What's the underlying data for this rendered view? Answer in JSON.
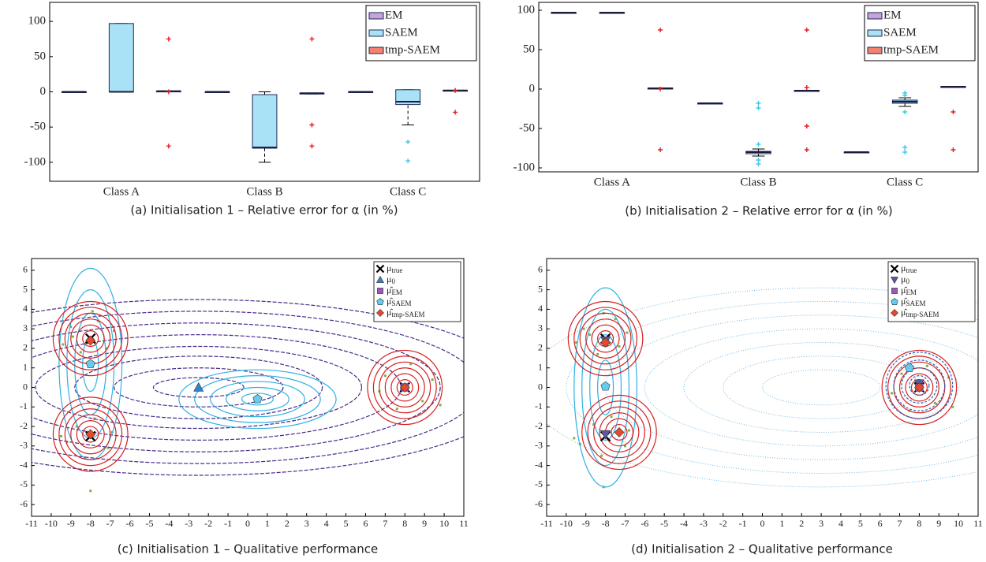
{
  "chart_data": [
    {
      "type": "box",
      "caption": "(a)  Initialisation 1 – Relative error for α (in %)",
      "categories": [
        "Class A",
        "Class B",
        "Class C"
      ],
      "ylim": [
        -127,
        127
      ],
      "yticks": [
        -100,
        -50,
        0,
        50,
        100
      ],
      "series": [
        {
          "name": "EM",
          "color": "#c8a2d8",
          "outlier_color": "#e02020",
          "boxes": [
            {
              "min": 0,
              "q1": 0,
              "median": 0,
              "q3": 0,
              "max": 0,
              "outliers": []
            },
            {
              "min": 0,
              "q1": 0,
              "median": 0,
              "q3": 0,
              "max": 0,
              "outliers": []
            },
            {
              "min": 0,
              "q1": 0,
              "median": 0,
              "q3": 0,
              "max": 0,
              "outliers": []
            }
          ]
        },
        {
          "name": "SAEM",
          "color": "#a9e1f6",
          "outlier_color": "#3cc8e8",
          "boxes": [
            {
              "min": 0,
              "q1": 0,
              "median": 0,
              "q3": 97,
              "max": 97,
              "outliers": []
            },
            {
              "min": -100,
              "q1": -80,
              "median": -79,
              "q3": -4,
              "max": 0,
              "outliers": []
            },
            {
              "min": -47,
              "q1": -18,
              "median": -14,
              "q3": 3,
              "max": 3,
              "outliers": [
                -71,
                -98
              ]
            }
          ]
        },
        {
          "name": "tmp-SAEM",
          "color": "#f4836d",
          "outlier_color": "#e02020",
          "boxes": [
            {
              "min": 0,
              "q1": 0,
              "median": 1,
              "q3": 1,
              "max": 1,
              "outliers": [
                75,
                0,
                -77
              ]
            },
            {
              "min": -3,
              "q1": -3,
              "median": -2,
              "q3": -2,
              "max": -2,
              "outliers": [
                75,
                -47,
                -77
              ]
            },
            {
              "min": 2,
              "q1": 2,
              "median": 2,
              "q3": 2,
              "max": 2,
              "outliers": [
                2,
                -29
              ]
            }
          ]
        }
      ]
    },
    {
      "type": "box",
      "caption": "(b)  Initialisation 2 – Relative error for α (in %)",
      "categories": [
        "Class A",
        "Class B",
        "Class C"
      ],
      "ylim": [
        -105,
        110
      ],
      "yticks": [
        -100,
        -50,
        0,
        50,
        100
      ],
      "series": [
        {
          "name": "EM",
          "color": "#c8a2d8",
          "outlier_color": "#e02020",
          "boxes": [
            {
              "min": 97,
              "q1": 97,
              "median": 97,
              "q3": 97,
              "max": 97,
              "outliers": []
            },
            {
              "min": -18,
              "q1": -18,
              "median": -18,
              "q3": -18,
              "max": -18,
              "outliers": []
            },
            {
              "min": -80,
              "q1": -80,
              "median": -80,
              "q3": -80,
              "max": -80,
              "outliers": []
            }
          ]
        },
        {
          "name": "SAEM",
          "color": "#a9e1f6",
          "outlier_color": "#3cc8e8",
          "boxes": [
            {
              "min": 97,
              "q1": 97,
              "median": 97,
              "q3": 97,
              "max": 97,
              "outliers": []
            },
            {
              "min": -85,
              "q1": -82,
              "median": -80,
              "q3": -79,
              "max": -76,
              "outliers": [
                -18,
                -24,
                -70,
                -90,
                -95
              ]
            },
            {
              "min": -22,
              "q1": -18,
              "median": -16,
              "q3": -14,
              "max": -11,
              "outliers": [
                -5,
                -8,
                -29,
                -74,
                -80
              ]
            }
          ]
        },
        {
          "name": "tmp-SAEM",
          "color": "#f4836d",
          "outlier_color": "#e02020",
          "boxes": [
            {
              "min": 1,
              "q1": 1,
              "median": 1,
              "q3": 1,
              "max": 1,
              "outliers": [
                75,
                0,
                -77
              ]
            },
            {
              "min": -2,
              "q1": -2,
              "median": -2,
              "q3": -2,
              "max": -2,
              "outliers": [
                75,
                2,
                -47,
                -77
              ]
            },
            {
              "min": 3,
              "q1": 3,
              "median": 3,
              "q3": 3,
              "max": 3,
              "outliers": [
                -29,
                -77
              ]
            }
          ]
        }
      ]
    },
    {
      "type": "scatter",
      "caption": "(c)  Initialisation 1 – Qualitative performance",
      "xlim": [
        -11,
        11
      ],
      "ylim": [
        -6.6,
        6.6
      ],
      "xticks": [
        -11,
        -10,
        -9,
        -8,
        -7,
        -6,
        -5,
        -4,
        -3,
        -2,
        -1,
        0,
        1,
        2,
        3,
        4,
        5,
        6,
        7,
        8,
        9,
        10,
        11
      ],
      "yticks": [
        -6,
        -5,
        -4,
        -3,
        -2,
        -1,
        0,
        1,
        2,
        3,
        4,
        5,
        6
      ],
      "contours": [
        {
          "color": "#4b2a8a",
          "dash": "5 2",
          "cx": -2.5,
          "cy": 0,
          "rx": [
            2.3,
            4.3,
            6.3,
            8.3,
            10.3,
            12.3,
            14.3,
            16.3
          ],
          "ry": [
            0.5,
            1.0,
            1.6,
            2.1,
            2.7,
            3.3,
            3.9,
            4.5
          ]
        },
        {
          "color": "#30b0e0",
          "dash": "none",
          "cx": -8,
          "cy": 1.2,
          "rx": [
            0.4,
            0.8,
            1.2,
            1.6
          ],
          "ry": [
            1.4,
            2.6,
            3.8,
            4.9
          ]
        },
        {
          "color": "#30b0e0",
          "dash": "none",
          "cx": 0.5,
          "cy": -0.6,
          "rx": [
            0.8,
            1.6,
            2.4,
            3.2,
            4.0
          ],
          "ry": [
            0.3,
            0.6,
            0.9,
            1.2,
            1.5
          ]
        },
        {
          "color": "#d62020",
          "dash": "none",
          "cx": -8,
          "cy": 2.5,
          "rx": [
            0.4,
            0.7,
            1.0,
            1.3,
            1.6,
            1.9
          ],
          "ry": [
            0.4,
            0.7,
            1.0,
            1.3,
            1.6,
            1.9
          ]
        },
        {
          "color": "#d62020",
          "dash": "none",
          "cx": -8,
          "cy": -2.4,
          "rx": [
            0.4,
            0.7,
            1.0,
            1.3,
            1.6,
            1.9
          ],
          "ry": [
            0.4,
            0.7,
            1.0,
            1.3,
            1.6,
            1.9
          ]
        },
        {
          "color": "#d62020",
          "dash": "none",
          "cx": 8,
          "cy": 0,
          "rx": [
            0.4,
            0.7,
            1.0,
            1.3,
            1.6,
            1.9
          ],
          "ry": [
            0.4,
            0.7,
            1.0,
            1.3,
            1.6,
            1.9
          ]
        }
      ],
      "points": {
        "color": "#7cb342",
        "x": [
          -9,
          -7.2,
          -8.5,
          -7.6,
          -8.9,
          -6.8,
          -9.4,
          -7.9,
          -8.7,
          -7.1,
          -9.2,
          -7.8,
          -8.3,
          -6.9,
          -9.5,
          -8,
          7,
          8.9,
          7.6,
          9.4,
          8.3,
          6.7,
          9.8,
          7.9
        ],
        "y": [
          3.1,
          2.0,
          1.8,
          3.4,
          2.6,
          2.9,
          2.2,
          3.9,
          -2,
          -3.1,
          -2.8,
          -1.6,
          -3.6,
          -2.3,
          -2.5,
          -5.3,
          0.6,
          -0.7,
          -1.1,
          0.4,
          1.2,
          -0.2,
          -0.9,
          0.1
        ]
      },
      "series": [
        {
          "name": "μ_true",
          "marker": "cross",
          "color": "#000000",
          "x": [
            -8,
            -8,
            8
          ],
          "y": [
            2.5,
            -2.5,
            0
          ]
        },
        {
          "name": "μ_0",
          "marker": "triangle",
          "color": "#3a7fc8",
          "x": [
            -2.5
          ],
          "y": [
            0
          ]
        },
        {
          "name": "μ̂_EM",
          "marker": "square",
          "color": "#9b59b6",
          "x": [
            8
          ],
          "y": [
            0
          ]
        },
        {
          "name": "μ̂_SAEM",
          "marker": "pentagon",
          "color": "#66ccee",
          "x": [
            -8,
            0.5
          ],
          "y": [
            1.2,
            -0.6
          ]
        },
        {
          "name": "μ̂_tmp-SAEM",
          "marker": "diamond",
          "color": "#e8492a",
          "x": [
            -8,
            -8,
            8
          ],
          "y": [
            2.4,
            -2.4,
            0
          ]
        }
      ]
    },
    {
      "type": "scatter",
      "caption": "(d)  Initialisation 2 – Qualitative performance",
      "xlim": [
        -11,
        11
      ],
      "ylim": [
        -6.6,
        6.6
      ],
      "xticks": [
        -11,
        -10,
        -9,
        -8,
        -7,
        -6,
        -5,
        -4,
        -3,
        -2,
        -1,
        0,
        1,
        2,
        3,
        4,
        5,
        6,
        7,
        8,
        9,
        10,
        11
      ],
      "yticks": [
        -6,
        -5,
        -4,
        -3,
        -2,
        -1,
        0,
        1,
        2,
        3,
        4,
        5,
        6
      ],
      "contours": [
        {
          "color": "#7ab8e0",
          "dash": "1 2",
          "cx": 3,
          "cy": 0,
          "rx": [
            3,
            5,
            7,
            9,
            11,
            13,
            15
          ],
          "ry": [
            0.9,
            1.6,
            2.3,
            3,
            3.7,
            4.4,
            5.1
          ]
        },
        {
          "color": "#30b0e0",
          "dash": "none",
          "cx": -8,
          "cy": 0,
          "rx": [
            0.4,
            0.8,
            1.2,
            1.6
          ],
          "ry": [
            1.4,
            2.7,
            4.0,
            5.1
          ]
        },
        {
          "color": "#d62020",
          "dash": "none",
          "cx": -8,
          "cy": 2.5,
          "rx": [
            0.4,
            0.7,
            1.0,
            1.3,
            1.6,
            1.9
          ],
          "ry": [
            0.4,
            0.7,
            1.0,
            1.3,
            1.6,
            1.9
          ]
        },
        {
          "color": "#d62020",
          "dash": "none",
          "cx": -7.3,
          "cy": -2.3,
          "rx": [
            0.4,
            0.7,
            1.0,
            1.3,
            1.6,
            1.9
          ],
          "ry": [
            0.4,
            0.7,
            1.0,
            1.3,
            1.6,
            1.9
          ]
        },
        {
          "color": "#d62020",
          "dash": "none",
          "cx": 8,
          "cy": 0,
          "rx": [
            0.4,
            0.7,
            1.0,
            1.3,
            1.6,
            1.9
          ],
          "ry": [
            0.4,
            0.7,
            1.0,
            1.3,
            1.6,
            1.9
          ]
        },
        {
          "color": "#2a62b8",
          "dash": "3 2",
          "cx": 8,
          "cy": 0.1,
          "rx": [
            0.5,
            0.9,
            1.3,
            1.7
          ],
          "ry": [
            0.5,
            0.9,
            1.3,
            1.7
          ]
        }
      ],
      "points": {
        "color": "#7cb342",
        "x": [
          -9.1,
          -7.3,
          -8.4,
          -7.5,
          -8.8,
          -6.9,
          -9.5,
          -8.1,
          -8.6,
          -7,
          -9.3,
          -7.7,
          -8.2,
          -6.8,
          -9.6,
          -8.1,
          7.1,
          8.8,
          7.5,
          9.5,
          8.4,
          6.6,
          9.7,
          7.8
        ],
        "y": [
          3,
          2.1,
          1.7,
          3.5,
          2.7,
          2.8,
          2.3,
          3.8,
          -1.9,
          -3,
          -2.9,
          -1.5,
          -3.5,
          -2.2,
          -2.6,
          -5.1,
          0.7,
          -0.8,
          -1.2,
          0.5,
          1.1,
          -0.3,
          -1,
          0.2
        ]
      },
      "series": [
        {
          "name": "μ_true",
          "marker": "cross",
          "color": "#000000",
          "x": [
            -8,
            -8,
            8
          ],
          "y": [
            2.5,
            -2.5,
            0
          ]
        },
        {
          "name": "μ_0",
          "marker": "triangle-down",
          "color": "#5a5aa0",
          "x": [
            -8,
            -8,
            8
          ],
          "y": [
            2.4,
            -2.4,
            0.2
          ]
        },
        {
          "name": "μ̂_EM",
          "marker": "square",
          "color": "#9b59b6",
          "x": [
            8
          ],
          "y": [
            0
          ]
        },
        {
          "name": "μ̂_SAEM",
          "marker": "pentagon",
          "color": "#66ccee",
          "x": [
            -8,
            7.5
          ],
          "y": [
            0.05,
            1
          ]
        },
        {
          "name": "μ̂_tmp-SAEM",
          "marker": "diamond",
          "color": "#e8492a",
          "x": [
            -8,
            -7.3,
            8
          ],
          "y": [
            2.3,
            -2.3,
            0
          ]
        }
      ]
    }
  ]
}
